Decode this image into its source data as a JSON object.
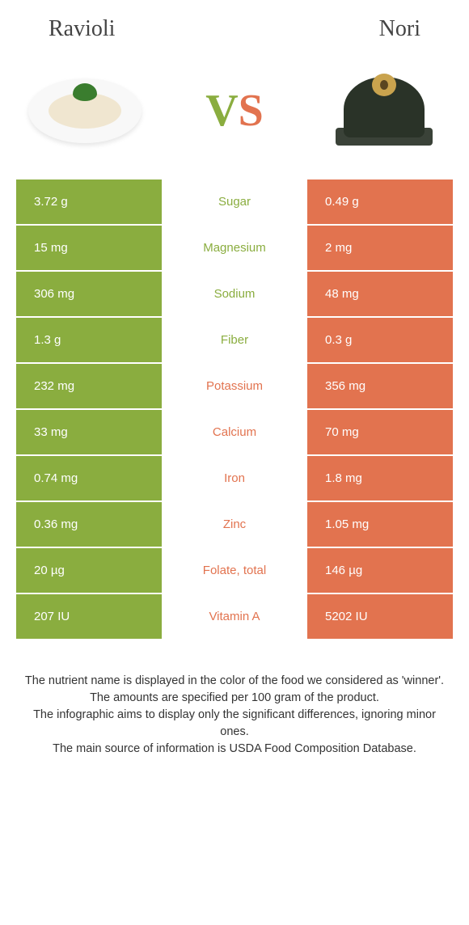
{
  "colors": {
    "green": "#8aad3f",
    "orange": "#e2734f",
    "white": "#ffffff"
  },
  "header": {
    "left": "Ravioli",
    "right": "Nori"
  },
  "vs": {
    "v": "V",
    "s": "S"
  },
  "rows": [
    {
      "left": "3.72 g",
      "label": "Sugar",
      "right": "0.49 g",
      "winner": "left"
    },
    {
      "left": "15 mg",
      "label": "Magnesium",
      "right": "2 mg",
      "winner": "left"
    },
    {
      "left": "306 mg",
      "label": "Sodium",
      "right": "48 mg",
      "winner": "left"
    },
    {
      "left": "1.3 g",
      "label": "Fiber",
      "right": "0.3 g",
      "winner": "left"
    },
    {
      "left": "232 mg",
      "label": "Potassium",
      "right": "356 mg",
      "winner": "right"
    },
    {
      "left": "33 mg",
      "label": "Calcium",
      "right": "70 mg",
      "winner": "right"
    },
    {
      "left": "0.74 mg",
      "label": "Iron",
      "right": "1.8 mg",
      "winner": "right"
    },
    {
      "left": "0.36 mg",
      "label": "Zinc",
      "right": "1.05 mg",
      "winner": "right"
    },
    {
      "left": "20 µg",
      "label": "Folate, total",
      "right": "146 µg",
      "winner": "right"
    },
    {
      "left": "207 IU",
      "label": "Vitamin A",
      "right": "5202 IU",
      "winner": "right"
    }
  ],
  "footer": {
    "l1": "The nutrient name is displayed in the color of the food we considered as 'winner'.",
    "l2": "The amounts are specified per 100 gram of the product.",
    "l3": "The infographic aims to display only the significant differences, ignoring minor ones.",
    "l4": "The main source of information is USDA Food Composition Database."
  }
}
